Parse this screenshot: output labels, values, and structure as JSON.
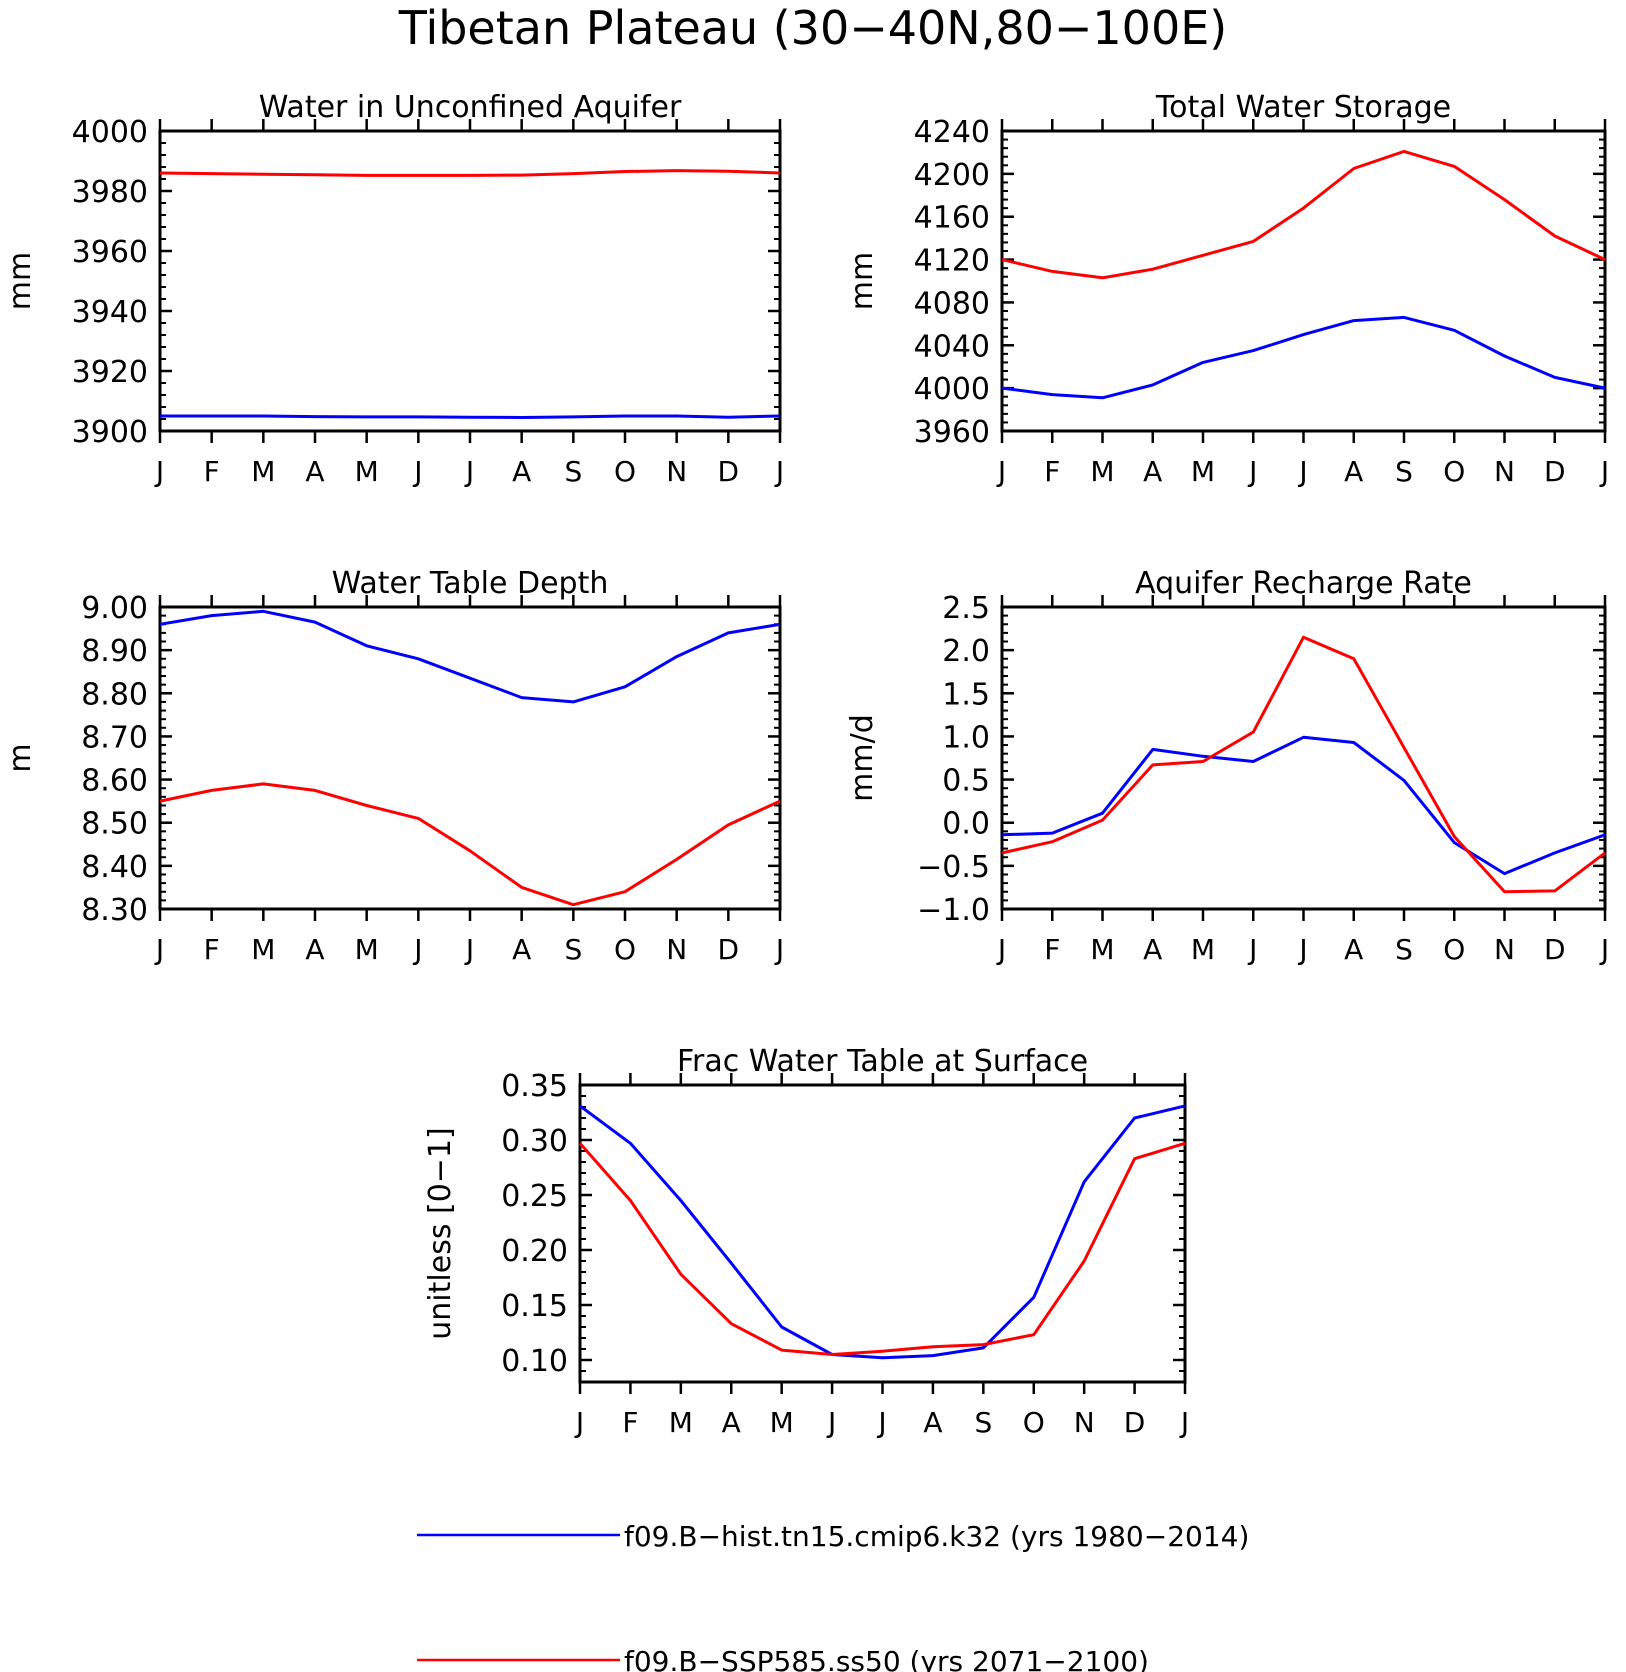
{
  "figure_title": "Tibetan Plateau (30-40N,80-100E)",
  "colors": {
    "hist": "#0000ff",
    "ssp": "#ff0000",
    "axis": "#000000"
  },
  "month_labels": [
    "J",
    "F",
    "M",
    "A",
    "M",
    "J",
    "J",
    "A",
    "S",
    "O",
    "N",
    "D",
    "J"
  ],
  "legend": [
    {
      "label": "f09.B-hist.tn15.cmip6.k32 (yrs 1980-2014)",
      "color": "#0000ff"
    },
    {
      "label": "f09.B-SSP585.ss50 (yrs 2071-2100)",
      "color": "#ff0000"
    }
  ],
  "chart_data": [
    {
      "type": "line",
      "title": "Water in Unconfined Aquifer",
      "ylabel": "mm",
      "ylim": [
        3900,
        4000
      ],
      "yticks": [
        3900,
        3920,
        3940,
        3960,
        3980,
        4000
      ],
      "ytick_labels": [
        "3900",
        "3920",
        "3940",
        "3960",
        "3980",
        "4000"
      ],
      "series": [
        {
          "name": "f09.B-hist.tn15.cmip6.k32 (yrs 1980-2014)",
          "color": "#0000ff",
          "values": [
            3905,
            3905,
            3905,
            3904.8,
            3904.7,
            3904.7,
            3904.6,
            3904.5,
            3904.7,
            3905,
            3905,
            3904.6,
            3905
          ]
        },
        {
          "name": "f09.B-SSP585.ss50 (yrs 2071-2100)",
          "color": "#ff0000",
          "values": [
            3986,
            3985.8,
            3985.6,
            3985.4,
            3985.2,
            3985.2,
            3985.2,
            3985.3,
            3985.8,
            3986.5,
            3986.8,
            3986.6,
            3986
          ]
        }
      ]
    },
    {
      "type": "line",
      "title": "Total Water Storage",
      "ylabel": "mm",
      "ylim": [
        3960,
        4240
      ],
      "yticks": [
        3960,
        4000,
        4040,
        4080,
        4120,
        4160,
        4200,
        4240
      ],
      "ytick_labels": [
        "3960",
        "4000",
        "4040",
        "4080",
        "4120",
        "4160",
        "4200",
        "4240"
      ],
      "series": [
        {
          "name": "f09.B-hist.tn15.cmip6.k32 (yrs 1980-2014)",
          "color": "#0000ff",
          "values": [
            4000,
            3994,
            3991,
            4003,
            4024,
            4035,
            4050,
            4063,
            4066,
            4054,
            4030,
            4010,
            4000
          ]
        },
        {
          "name": "f09.B-SSP585.ss50 (yrs 2071-2100)",
          "color": "#ff0000",
          "values": [
            4120,
            4109,
            4103,
            4111,
            4124,
            4137,
            4168,
            4205,
            4221,
            4207,
            4176,
            4142,
            4120
          ]
        }
      ]
    },
    {
      "type": "line",
      "title": "Water Table Depth",
      "ylabel": "m",
      "ylim": [
        8.3,
        9.0
      ],
      "yticks": [
        8.3,
        8.4,
        8.5,
        8.6,
        8.7,
        8.8,
        8.9,
        9.0
      ],
      "ytick_labels": [
        "8.30",
        "8.40",
        "8.50",
        "8.60",
        "8.70",
        "8.80",
        "8.90",
        "9.00"
      ],
      "series": [
        {
          "name": "f09.B-hist.tn15.cmip6.k32 (yrs 1980-2014)",
          "color": "#0000ff",
          "values": [
            8.96,
            8.98,
            8.99,
            8.965,
            8.91,
            8.88,
            8.835,
            8.79,
            8.78,
            8.815,
            8.885,
            8.94,
            8.96
          ]
        },
        {
          "name": "f09.B-SSP585.ss50 (yrs 2071-2100)",
          "color": "#ff0000",
          "values": [
            8.55,
            8.575,
            8.59,
            8.575,
            8.54,
            8.51,
            8.435,
            8.35,
            8.31,
            8.34,
            8.415,
            8.495,
            8.55
          ]
        }
      ]
    },
    {
      "type": "line",
      "title": "Aquifer Recharge Rate",
      "ylabel": "mm/d",
      "ylim": [
        -1.0,
        2.5
      ],
      "yticks": [
        -1.0,
        -0.5,
        0.0,
        0.5,
        1.0,
        1.5,
        2.0,
        2.5
      ],
      "ytick_labels": [
        "-1.0",
        "-0.5",
        "0.0",
        "0.5",
        "1.0",
        "1.5",
        "2.0",
        "2.5"
      ],
      "series": [
        {
          "name": "f09.B-hist.tn15.cmip6.k32 (yrs 1980-2014)",
          "color": "#0000ff",
          "values": [
            -0.14,
            -0.12,
            0.11,
            0.85,
            0.77,
            0.71,
            0.99,
            0.93,
            0.49,
            -0.23,
            -0.59,
            -0.35,
            -0.14
          ]
        },
        {
          "name": "f09.B-SSP585.ss50 (yrs 2071-2100)",
          "color": "#ff0000",
          "values": [
            -0.35,
            -0.22,
            0.03,
            0.67,
            0.71,
            1.05,
            2.15,
            1.9,
            0.87,
            -0.16,
            -0.8,
            -0.79,
            -0.35
          ]
        }
      ]
    },
    {
      "type": "line",
      "title": "Frac Water Table at Surface",
      "ylabel": "unitless [0-1]",
      "ylim": [
        0.08,
        0.35
      ],
      "yticks": [
        0.1,
        0.15,
        0.2,
        0.25,
        0.3,
        0.35
      ],
      "ytick_labels": [
        "0.10",
        "0.15",
        "0.20",
        "0.25",
        "0.30",
        "0.35"
      ],
      "series": [
        {
          "name": "f09.B-hist.tn15.cmip6.k32 (yrs 1980-2014)",
          "color": "#0000ff",
          "values": [
            0.331,
            0.297,
            0.245,
            0.188,
            0.13,
            0.105,
            0.102,
            0.104,
            0.111,
            0.157,
            0.262,
            0.32,
            0.331
          ]
        },
        {
          "name": "f09.B-SSP585.ss50 (yrs 2071-2100)",
          "color": "#ff0000",
          "values": [
            0.297,
            0.245,
            0.178,
            0.133,
            0.109,
            0.105,
            0.108,
            0.112,
            0.114,
            0.123,
            0.19,
            0.283,
            0.297
          ]
        }
      ]
    }
  ]
}
